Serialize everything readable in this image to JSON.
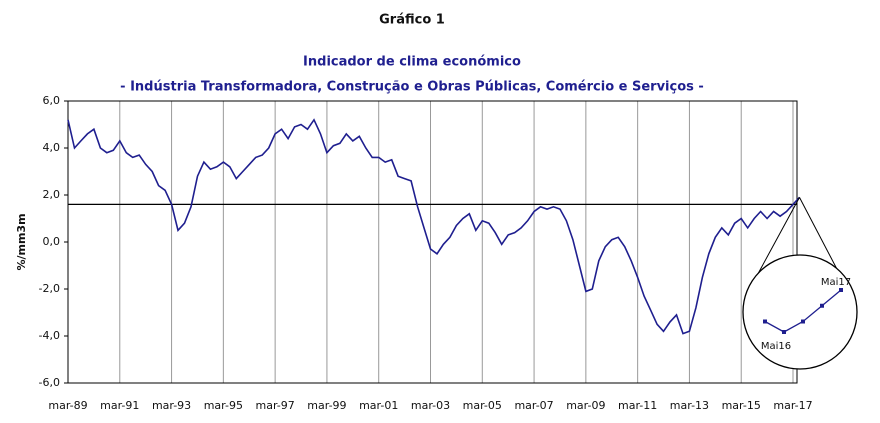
{
  "chart_data": {
    "type": "line",
    "title": "Gráfico 1",
    "subtitle": "Indicador de clima económico",
    "subtitle2": "- Indústria Transformadora, Construção e Obras Públicas, Comércio e Serviços -",
    "y_label": "%/mm3m",
    "categories": [
      "mar-89",
      null,
      null,
      null,
      null,
      null,
      null,
      null,
      "mar-91",
      null,
      null,
      null,
      null,
      null,
      null,
      null,
      "mar-93",
      null,
      null,
      null,
      null,
      null,
      null,
      null,
      "mar-95",
      null,
      null,
      null,
      null,
      null,
      null,
      null,
      "mar-97",
      null,
      null,
      null,
      null,
      null,
      null,
      null,
      "mar-99",
      null,
      null,
      null,
      null,
      null,
      null,
      null,
      "mar-01",
      null,
      null,
      null,
      null,
      null,
      null,
      null,
      "mar-03",
      null,
      null,
      null,
      null,
      null,
      null,
      null,
      "mar-05",
      null,
      null,
      null,
      null,
      null,
      null,
      null,
      "mar-07",
      null,
      null,
      null,
      null,
      null,
      null,
      null,
      "mar-09",
      null,
      null,
      null,
      null,
      null,
      null,
      null,
      "mar-11",
      null,
      null,
      null,
      null,
      null,
      null,
      null,
      "mar-13",
      null,
      null,
      null,
      null,
      null,
      null,
      null,
      "mar-15",
      null,
      null,
      null,
      null,
      null,
      null,
      null,
      "mar-17",
      null
    ],
    "series": [
      {
        "name": "Indicador de clima económico",
        "color": "#1f1f8f",
        "values": [
          5.2,
          4.0,
          4.3,
          4.6,
          4.8,
          4.0,
          3.8,
          3.9,
          4.3,
          3.8,
          3.6,
          3.7,
          3.3,
          3.0,
          2.4,
          2.2,
          1.6,
          0.5,
          0.8,
          1.5,
          2.8,
          3.4,
          3.1,
          3.2,
          3.4,
          3.2,
          2.7,
          3.0,
          3.3,
          3.6,
          3.7,
          4.0,
          4.6,
          4.8,
          4.4,
          4.9,
          5.0,
          4.8,
          5.2,
          4.6,
          3.8,
          4.1,
          4.2,
          4.6,
          4.3,
          4.5,
          4.0,
          3.6,
          3.6,
          3.4,
          3.5,
          2.8,
          2.7,
          2.6,
          1.5,
          0.6,
          -0.3,
          -0.5,
          -0.1,
          0.2,
          0.7,
          1.0,
          1.2,
          0.5,
          0.9,
          0.8,
          0.4,
          -0.1,
          0.3,
          0.4,
          0.6,
          0.9,
          1.3,
          1.5,
          1.4,
          1.5,
          1.4,
          0.9,
          0.1,
          -1.0,
          -2.1,
          -2.0,
          -0.8,
          -0.2,
          0.1,
          0.2,
          -0.2,
          -0.8,
          -1.5,
          -2.3,
          -2.9,
          -3.5,
          -3.8,
          -3.4,
          -3.1,
          -3.9,
          -3.8,
          -2.8,
          -1.5,
          -0.5,
          0.2,
          0.6,
          0.3,
          0.8,
          1.0,
          0.6,
          1.0,
          1.3,
          1.0,
          1.3,
          1.1,
          1.3,
          1.6,
          1.9
        ]
      }
    ],
    "reference_line": 1.6,
    "ylim": [
      -6,
      6
    ],
    "yticks": [
      {
        "value": -6,
        "label": "-6,0"
      },
      {
        "value": -4,
        "label": "-4,0"
      },
      {
        "value": -2,
        "label": "-2,0"
      },
      {
        "value": 0,
        "label": "0,0"
      },
      {
        "value": 2,
        "label": "2,0"
      },
      {
        "value": 4,
        "label": "4,0"
      },
      {
        "value": 6,
        "label": "6,0"
      }
    ],
    "annotations": [
      "Mai17",
      "Mai16"
    ]
  }
}
